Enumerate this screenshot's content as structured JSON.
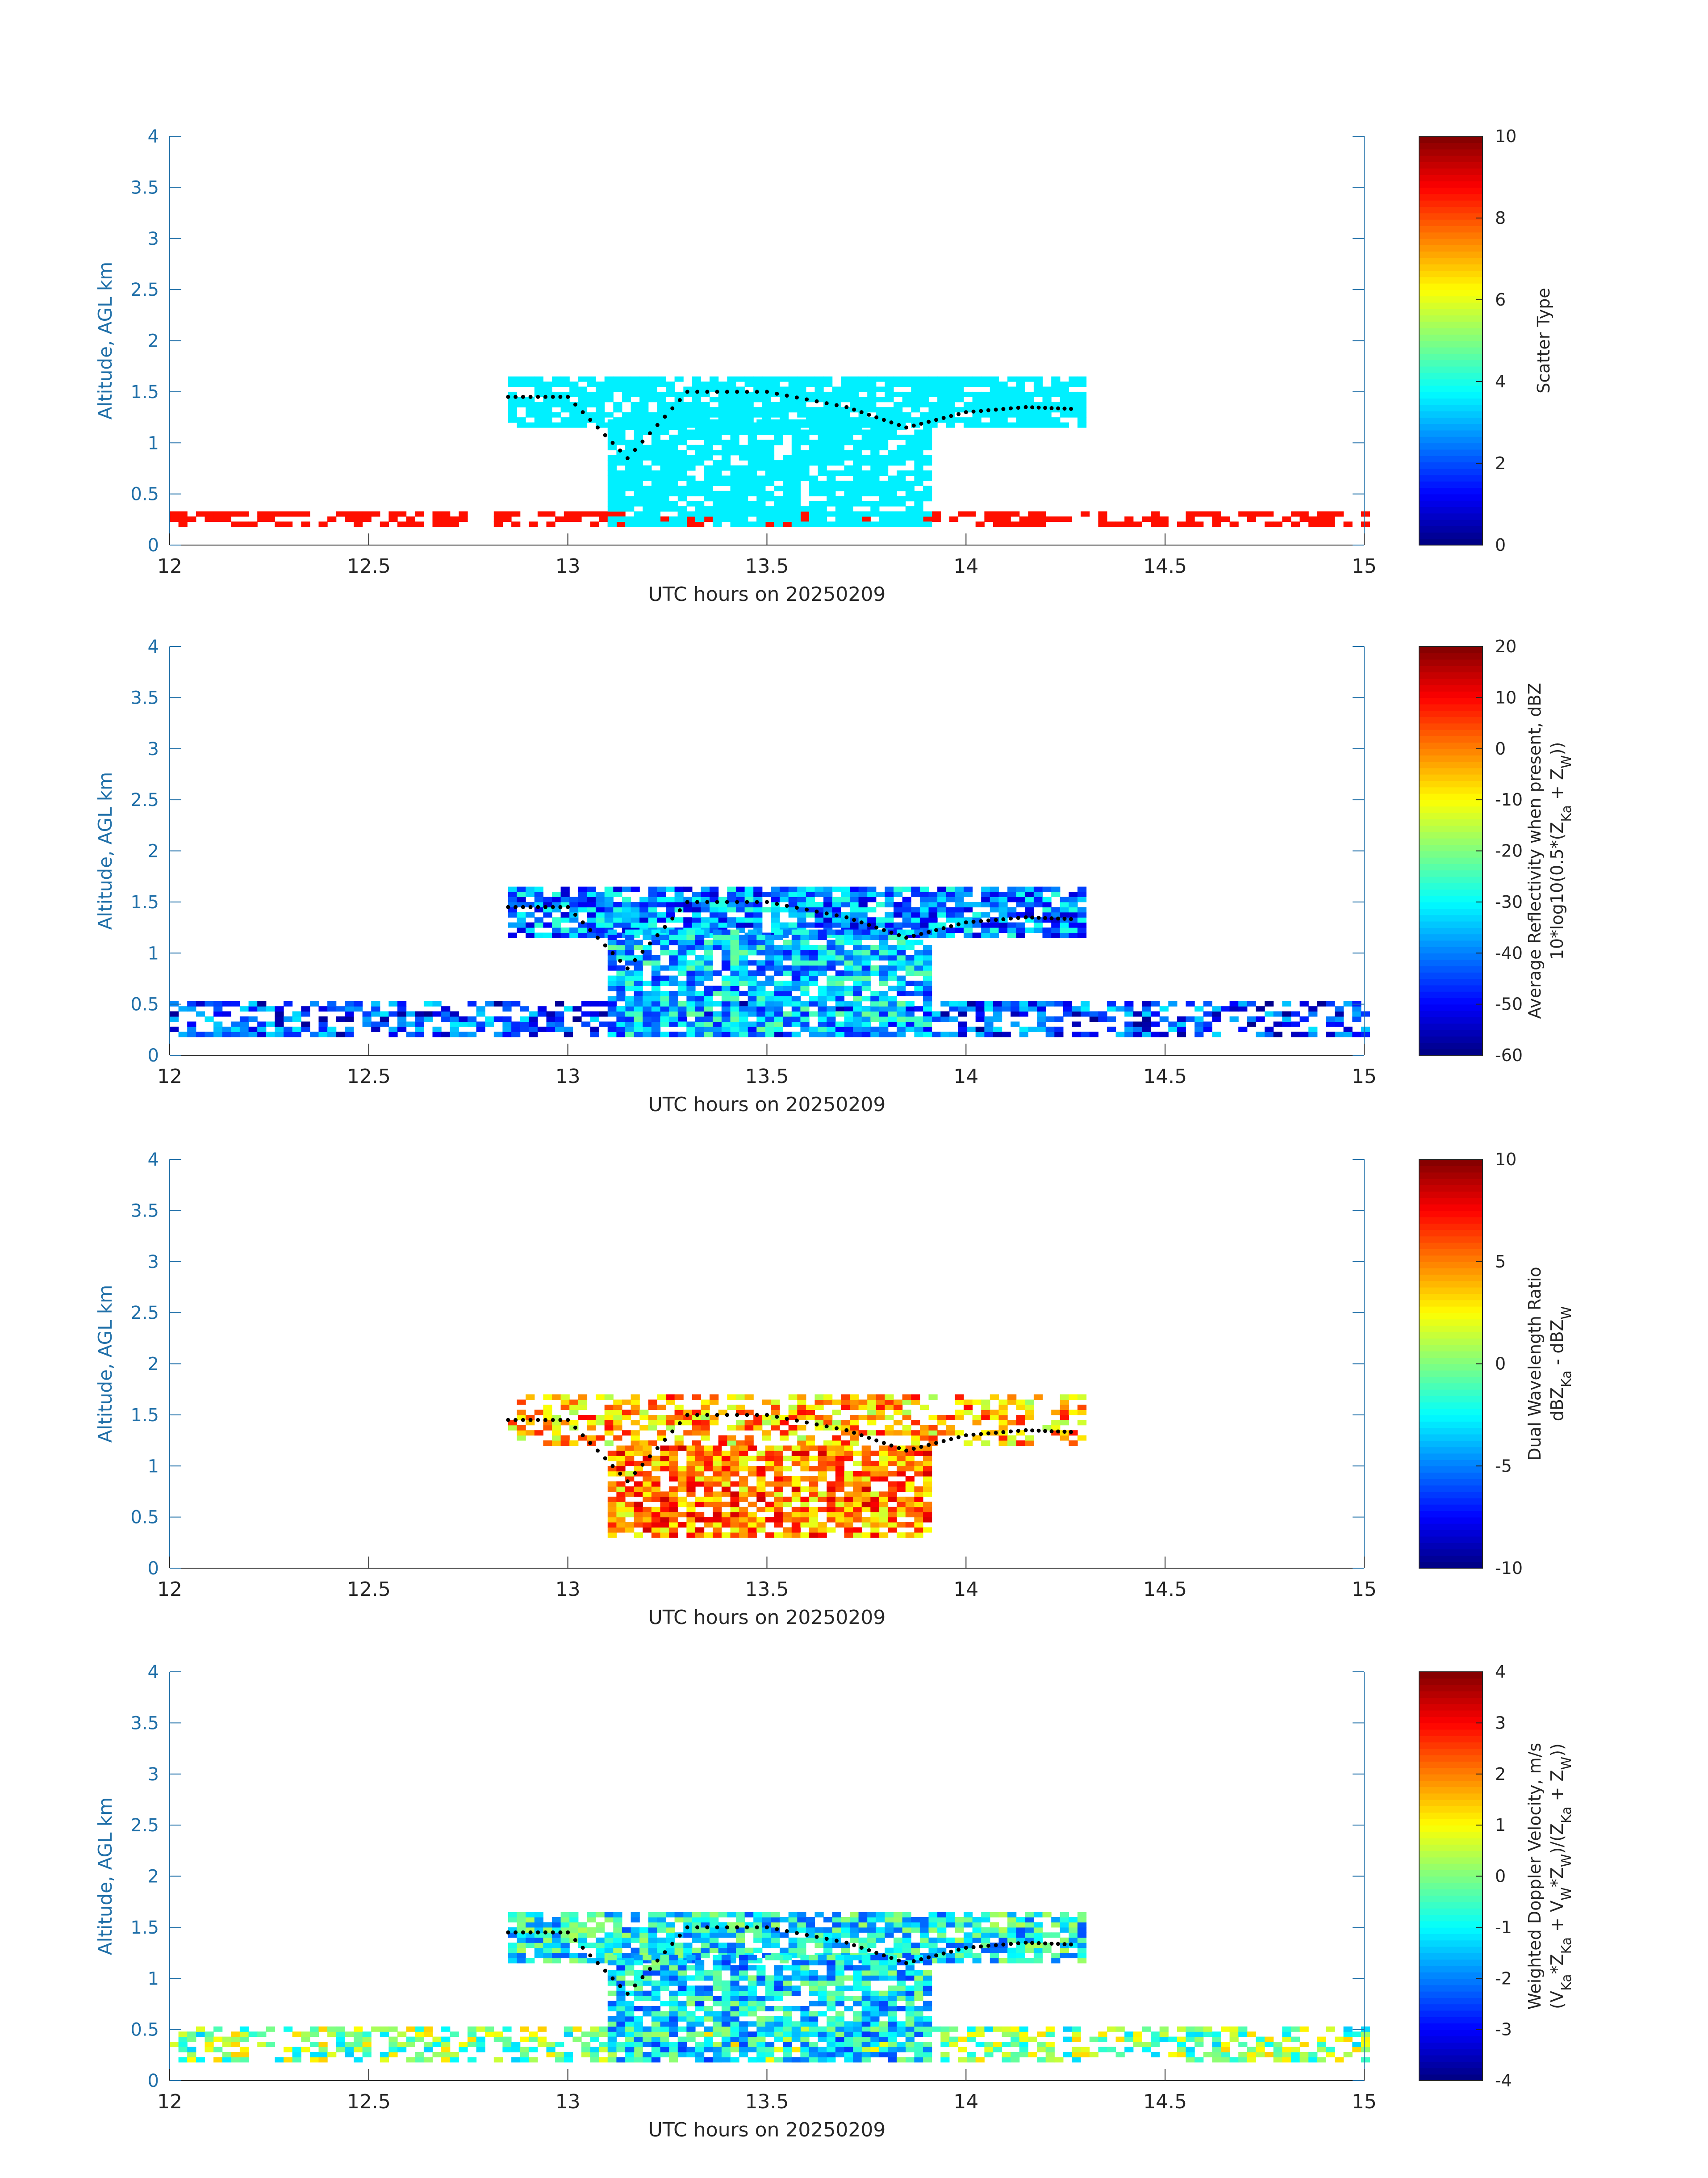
{
  "chart_data": [
    {
      "type": "heatmap",
      "xlabel": "UTC hours on 20250209",
      "ylabel": "Altitude, AGL km",
      "xlim": [
        12,
        15
      ],
      "ylim": [
        0,
        4
      ],
      "xticks": [
        "12",
        "12.5",
        "13",
        "13.5",
        "14",
        "14.5",
        "15"
      ],
      "yticks": [
        "0",
        "0.5",
        "1",
        "1.5",
        "2",
        "2.5",
        "3",
        "3.5",
        "4"
      ],
      "colorbar": {
        "label_lines": [
          "Scatter Type"
        ],
        "range": [
          0,
          10
        ],
        "ticks": [
          "0",
          "2",
          "4",
          "6",
          "8",
          "10"
        ],
        "colormap": "jet"
      },
      "layers": [
        {
          "name": "surface clutter",
          "value": 8.6,
          "x": [
            12.0,
            15.0
          ],
          "y": [
            0.18,
            0.3
          ]
        },
        {
          "name": "cloud layer",
          "value": 3.6,
          "x": [
            12.85,
            14.3
          ],
          "y": [
            1.15,
            1.65
          ]
        },
        {
          "name": "fall streaks",
          "value": 3.6,
          "x": [
            13.1,
            13.9
          ],
          "y": [
            0.18,
            1.2
          ]
        }
      ],
      "cloud_top_trace": {
        "x": [
          12.85,
          13.0,
          13.15,
          13.3,
          13.5,
          13.7,
          13.85,
          14.0,
          14.15,
          14.28
        ],
        "y": [
          1.45,
          1.45,
          0.85,
          1.5,
          1.5,
          1.35,
          1.15,
          1.3,
          1.35,
          1.33
        ]
      }
    },
    {
      "type": "heatmap",
      "xlabel": "UTC hours on 20250209",
      "ylabel": "Altitude, AGL km",
      "xlim": [
        12,
        15
      ],
      "ylim": [
        0,
        4
      ],
      "xticks": [
        "12",
        "12.5",
        "13",
        "13.5",
        "14",
        "14.5",
        "15"
      ],
      "yticks": [
        "0",
        "0.5",
        "1",
        "1.5",
        "2",
        "2.5",
        "3",
        "3.5",
        "4"
      ],
      "colorbar": {
        "label_lines": [
          "Average Reflectivity when present, dBZ",
          "10*log10(0.5*(Z_Ka + Z_W))"
        ],
        "range": [
          -60,
          20
        ],
        "ticks": [
          "-60",
          "-50",
          "-40",
          "-30",
          "-20",
          "-10",
          "0",
          "10",
          "20"
        ],
        "colormap": "jet"
      },
      "layers": [
        {
          "name": "surface clutter",
          "value": -45,
          "x": [
            12.0,
            15.0
          ],
          "y": [
            0.18,
            0.5
          ]
        },
        {
          "name": "cloud layer",
          "value": -40,
          "x": [
            12.85,
            14.3
          ],
          "y": [
            1.15,
            1.65
          ]
        },
        {
          "name": "fall streaks",
          "value": -35,
          "x": [
            13.1,
            13.9
          ],
          "y": [
            0.18,
            1.2
          ]
        }
      ],
      "cloud_top_trace": {
        "x": [
          12.85,
          13.0,
          13.15,
          13.3,
          13.5,
          13.7,
          13.85,
          14.0,
          14.15,
          14.28
        ],
        "y": [
          1.45,
          1.45,
          0.85,
          1.5,
          1.5,
          1.35,
          1.15,
          1.3,
          1.35,
          1.33
        ]
      }
    },
    {
      "type": "heatmap",
      "xlabel": "UTC hours on 20250209",
      "ylabel": "Altitude, AGL km",
      "xlim": [
        12,
        15
      ],
      "ylim": [
        0,
        4
      ],
      "xticks": [
        "12",
        "12.5",
        "13",
        "13.5",
        "14",
        "14.5",
        "15"
      ],
      "yticks": [
        "0",
        "0.5",
        "1",
        "1.5",
        "2",
        "2.5",
        "3",
        "3.5",
        "4"
      ],
      "colorbar": {
        "label_lines": [
          "Dual Wavelength Ratio",
          "dBZ_Ka - dBZ_W"
        ],
        "range": [
          -10,
          10
        ],
        "ticks": [
          "-10",
          "-5",
          "0",
          "5",
          "10"
        ],
        "colormap": "jet"
      },
      "layers": [
        {
          "name": "cloud layer",
          "value": 4,
          "x": [
            12.85,
            14.3
          ],
          "y": [
            1.2,
            1.7
          ]
        },
        {
          "name": "fall streaks",
          "value": 5,
          "x": [
            13.1,
            13.9
          ],
          "y": [
            0.3,
            1.2
          ]
        }
      ],
      "cloud_top_trace": {
        "x": [
          12.85,
          13.0,
          13.15,
          13.3,
          13.5,
          13.7,
          13.85,
          14.0,
          14.15,
          14.28
        ],
        "y": [
          1.45,
          1.45,
          0.85,
          1.5,
          1.5,
          1.35,
          1.15,
          1.3,
          1.35,
          1.33
        ]
      }
    },
    {
      "type": "heatmap",
      "xlabel": "UTC hours on 20250209",
      "ylabel": "Altitude, AGL km",
      "xlim": [
        12,
        15
      ],
      "ylim": [
        0,
        4
      ],
      "xticks": [
        "12",
        "12.5",
        "13",
        "13.5",
        "14",
        "14.5",
        "15"
      ],
      "yticks": [
        "0",
        "0.5",
        "1",
        "1.5",
        "2",
        "2.5",
        "3",
        "3.5",
        "4"
      ],
      "colorbar": {
        "label_lines": [
          "Weighted Doppler Velocity, m/s",
          "(V_Ka*Z_Ka + V_W*Z_W)/(Z_Ka + Z_W))"
        ],
        "range": [
          -4,
          4
        ],
        "ticks": [
          "-4",
          "-3",
          "-2",
          "-1",
          "0",
          "1",
          "2",
          "3",
          "4"
        ],
        "colormap": "jet"
      },
      "layers": [
        {
          "name": "surface clutter",
          "value": 0,
          "x": [
            12.0,
            15.0
          ],
          "y": [
            0.18,
            0.5
          ]
        },
        {
          "name": "cloud layer",
          "value": -1,
          "x": [
            12.85,
            14.3
          ],
          "y": [
            1.15,
            1.65
          ]
        },
        {
          "name": "fall streaks",
          "value": -1.2,
          "x": [
            13.1,
            13.9
          ],
          "y": [
            0.18,
            1.2
          ]
        }
      ],
      "cloud_top_trace": {
        "x": [
          12.85,
          13.0,
          13.15,
          13.3,
          13.5,
          13.7,
          13.85,
          14.0,
          14.15,
          14.28
        ],
        "y": [
          1.45,
          1.45,
          0.85,
          1.5,
          1.5,
          1.35,
          1.15,
          1.3,
          1.35,
          1.33
        ]
      }
    }
  ]
}
